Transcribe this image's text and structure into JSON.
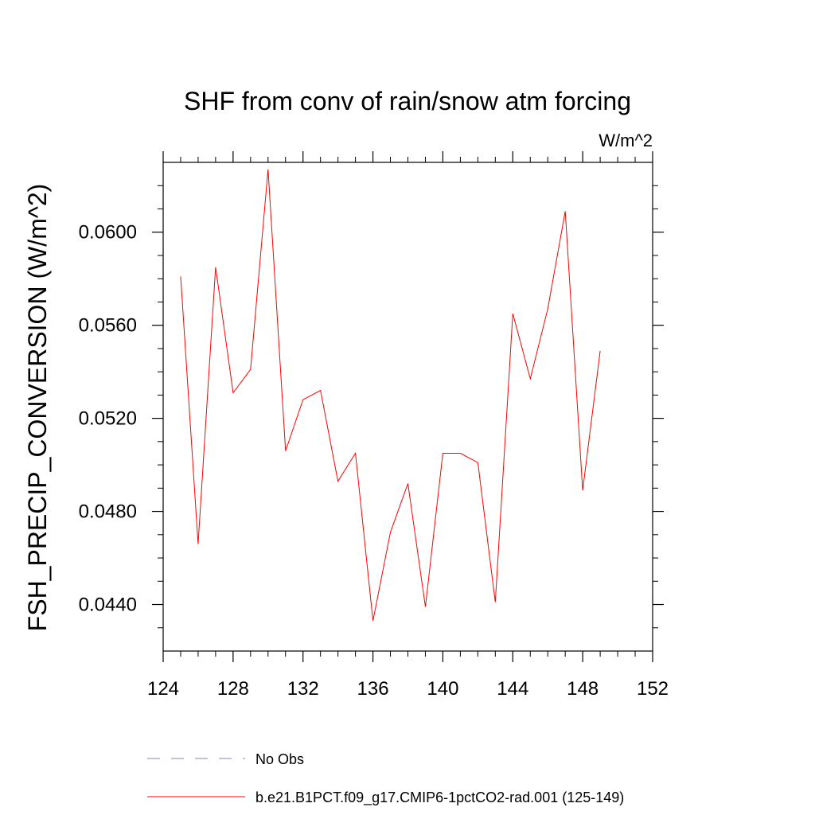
{
  "chart_data": {
    "type": "line",
    "title": "SHF from conv of rain/snow atm forcing",
    "units_label": "W/m^2",
    "ylabel": "FSH_PRECIP_CONVERSION  (W/m^2)",
    "xlabel": "",
    "xlim": [
      124,
      152
    ],
    "ylim": [
      0.042,
      0.063
    ],
    "xticks": [
      124,
      128,
      132,
      136,
      140,
      144,
      148,
      152
    ],
    "yticks": [
      0.044,
      0.048,
      0.052,
      0.056,
      0.06
    ],
    "ytick_labels": [
      "0.0440",
      "0.0480",
      "0.0520",
      "0.0560",
      "0.0600"
    ],
    "grid": false,
    "legend_position": "bottom",
    "series": [
      {
        "name": "b.e21.B1PCT.f09_g17.CMIP6-1pctCO2-rad.001 (125-149)",
        "color": "#ff0000",
        "dash": "solid",
        "x": [
          125,
          126,
          127,
          128,
          129,
          130,
          131,
          132,
          133,
          134,
          135,
          136,
          137,
          138,
          139,
          140,
          141,
          142,
          143,
          144,
          145,
          146,
          147,
          148,
          149
        ],
        "y": [
          0.0581,
          0.0466,
          0.0585,
          0.0531,
          0.0541,
          0.0627,
          0.0506,
          0.0528,
          0.0532,
          0.0493,
          0.0505,
          0.0433,
          0.0471,
          0.0492,
          0.0439,
          0.0505,
          0.0505,
          0.0501,
          0.0441,
          0.0565,
          0.0537,
          0.0567,
          0.0609,
          0.0489,
          0.0549
        ]
      }
    ],
    "legend": [
      {
        "label": "No Obs",
        "color": "#8080c0",
        "dash": "dashed"
      },
      {
        "label": "b.e21.B1PCT.f09_g17.CMIP6-1pctCO2-rad.001 (125-149)",
        "color": "#ff0000",
        "dash": "solid"
      }
    ]
  }
}
